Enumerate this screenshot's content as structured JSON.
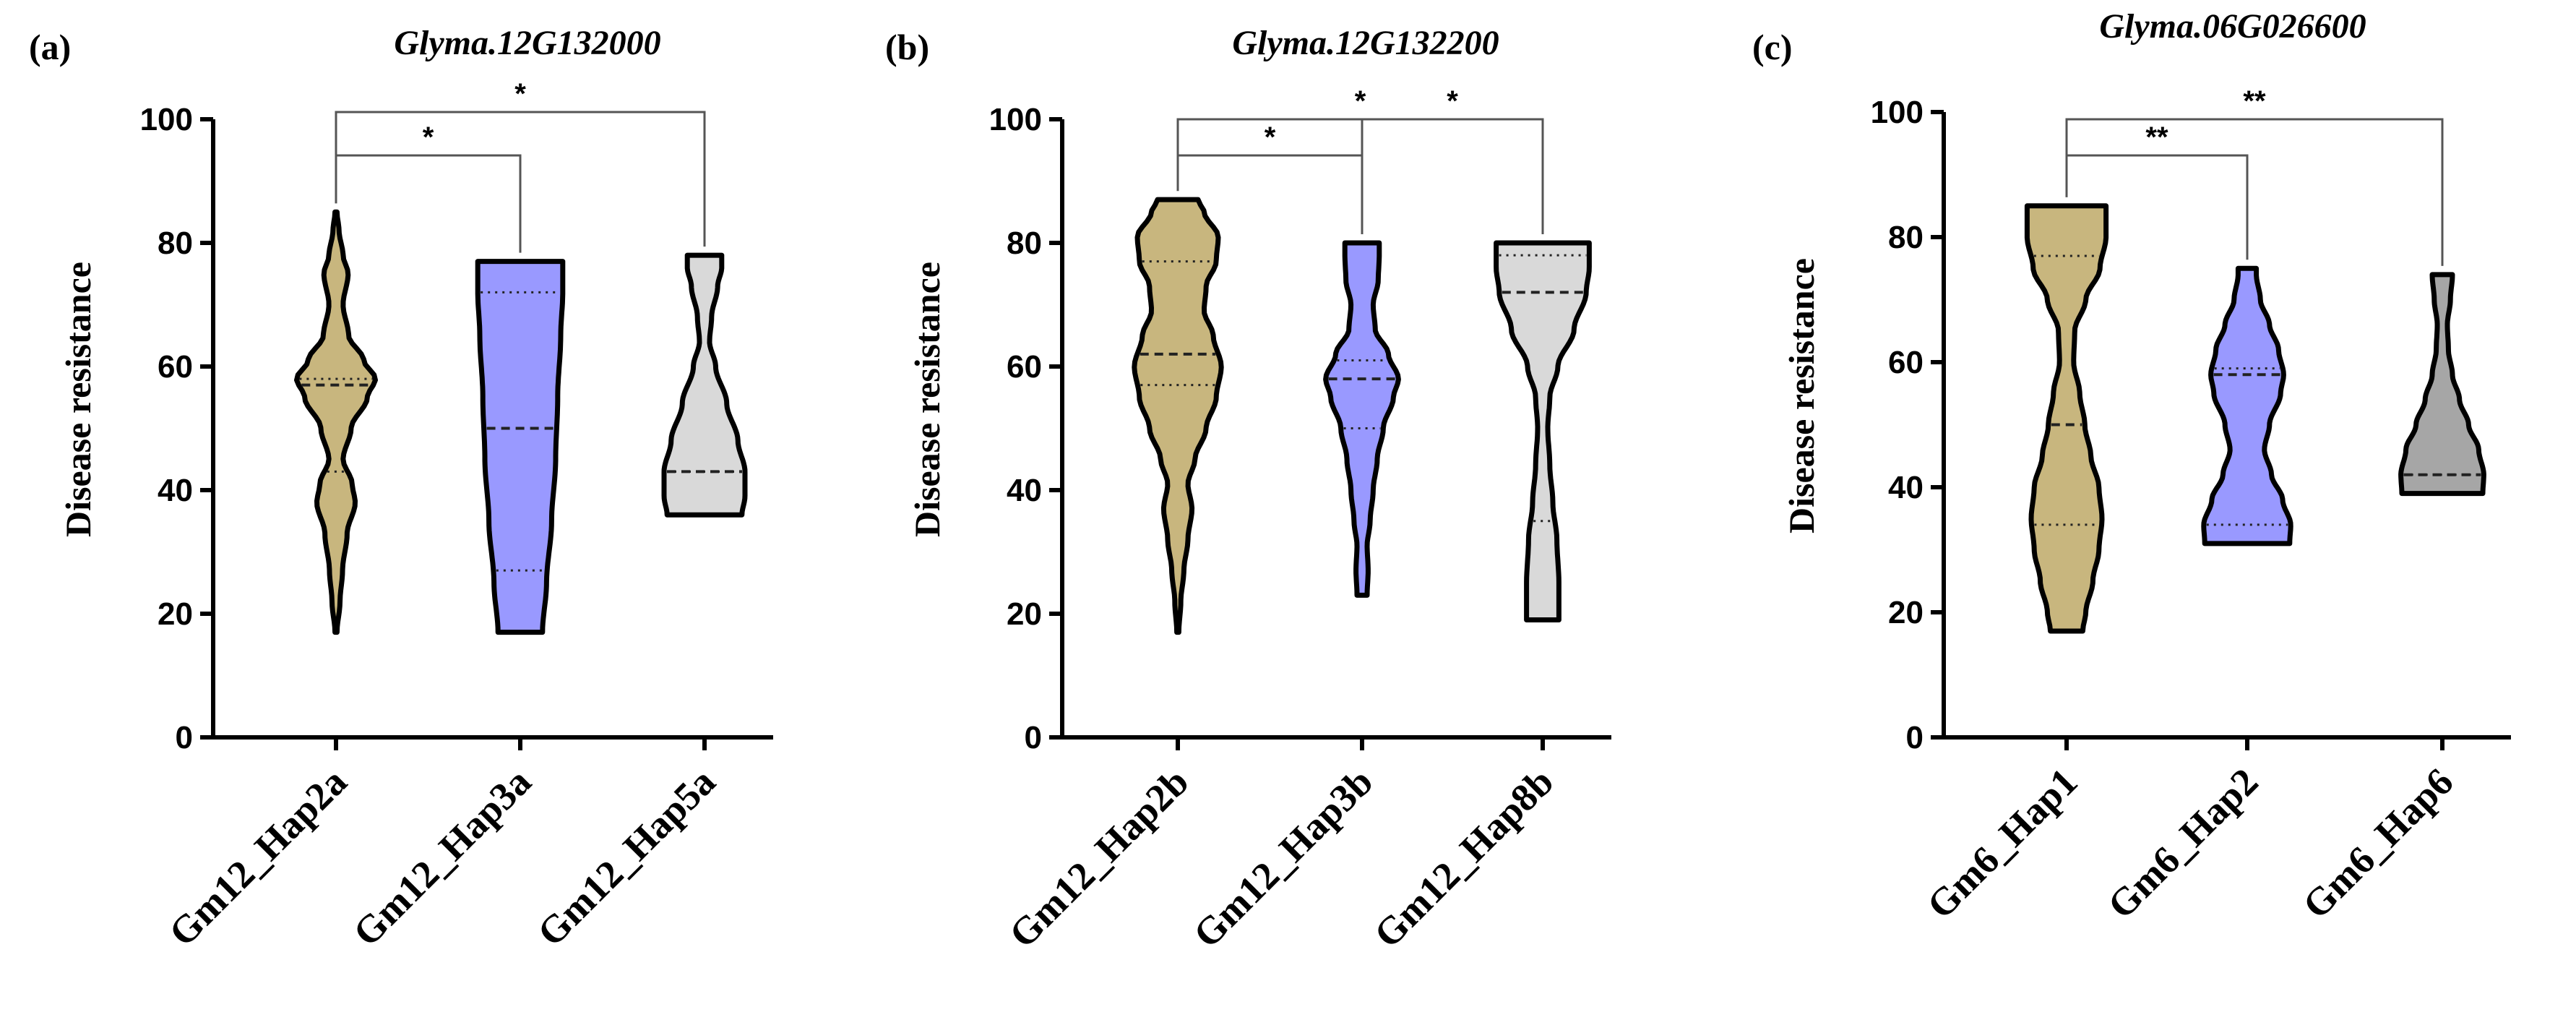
{
  "chart_data": [
    {
      "type": "violin",
      "panel": "(a)",
      "title": "Glyma.12G132000",
      "ylabel": "Disease resistance",
      "ylim": [
        0,
        100
      ],
      "yticks": [
        0,
        20,
        40,
        60,
        80,
        100
      ],
      "categories": [
        "Gm12_Hap2a",
        "Gm12_Hap3a",
        "Gm12_Hap5a"
      ],
      "violins": [
        {
          "name": "Gm12_Hap2a",
          "color": "#C8B67E",
          "min": 17,
          "max": 85,
          "q1": 43,
          "median": 57,
          "q3": 58,
          "profile": [
            [
              17,
              0.02
            ],
            [
              22,
              0.08
            ],
            [
              27,
              0.13
            ],
            [
              33,
              0.22
            ],
            [
              38,
              0.38
            ],
            [
              41,
              0.32
            ],
            [
              45,
              0.14
            ],
            [
              50,
              0.3
            ],
            [
              55,
              0.62
            ],
            [
              58,
              0.78
            ],
            [
              61,
              0.55
            ],
            [
              65,
              0.25
            ],
            [
              70,
              0.14
            ],
            [
              75,
              0.24
            ],
            [
              78,
              0.14
            ],
            [
              82,
              0.06
            ],
            [
              85,
              0.02
            ]
          ]
        },
        {
          "name": "Gm12_Hap3a",
          "color": "#9999FF",
          "min": 17,
          "max": 77,
          "q1": 27,
          "median": 50,
          "q3": 72,
          "profile": [
            [
              17,
              0.44
            ],
            [
              25,
              0.52
            ],
            [
              35,
              0.62
            ],
            [
              45,
              0.7
            ],
            [
              55,
              0.74
            ],
            [
              65,
              0.8
            ],
            [
              72,
              0.84
            ],
            [
              77,
              0.84
            ]
          ]
        },
        {
          "name": "Gm12_Hap5a",
          "color": "#D9D9D9",
          "min": 36,
          "max": 78,
          "q1": 43,
          "median": 43,
          "q3": 43,
          "profile": [
            [
              36,
              0.74
            ],
            [
              39,
              0.8
            ],
            [
              43,
              0.8
            ],
            [
              48,
              0.66
            ],
            [
              54,
              0.44
            ],
            [
              60,
              0.22
            ],
            [
              64,
              0.1
            ],
            [
              68,
              0.14
            ],
            [
              73,
              0.26
            ],
            [
              76,
              0.34
            ],
            [
              78,
              0.34
            ]
          ]
        }
      ],
      "significance": [
        {
          "from": 0,
          "to": 1,
          "label": "*"
        },
        {
          "from": 0,
          "to": 2,
          "label": "*"
        }
      ]
    },
    {
      "type": "violin",
      "panel": "(b)",
      "title": "Glyma.12G132200",
      "ylabel": "Disease resistance",
      "ylim": [
        0,
        100
      ],
      "yticks": [
        0,
        20,
        40,
        60,
        80,
        100
      ],
      "categories": [
        "Gm12_Hap2b",
        "Gm12_Hap3b",
        "Gm12_Hap8b"
      ],
      "violins": [
        {
          "name": "Gm12_Hap2b",
          "color": "#C8B67E",
          "min": 17,
          "max": 87,
          "q1": 57,
          "median": 62,
          "q3": 77,
          "profile": [
            [
              17,
              0.02
            ],
            [
              22,
              0.06
            ],
            [
              27,
              0.12
            ],
            [
              32,
              0.2
            ],
            [
              37,
              0.28
            ],
            [
              41,
              0.2
            ],
            [
              45,
              0.34
            ],
            [
              50,
              0.56
            ],
            [
              55,
              0.76
            ],
            [
              60,
              0.86
            ],
            [
              65,
              0.7
            ],
            [
              69,
              0.52
            ],
            [
              73,
              0.56
            ],
            [
              77,
              0.76
            ],
            [
              81,
              0.8
            ],
            [
              85,
              0.52
            ],
            [
              87,
              0.4
            ]
          ]
        },
        {
          "name": "Gm12_Hap3b",
          "color": "#9999FF",
          "min": 23,
          "max": 80,
          "q1": 50,
          "median": 58,
          "q3": 61,
          "profile": [
            [
              23,
              0.1
            ],
            [
              27,
              0.12
            ],
            [
              31,
              0.1
            ],
            [
              35,
              0.16
            ],
            [
              40,
              0.22
            ],
            [
              45,
              0.3
            ],
            [
              50,
              0.42
            ],
            [
              55,
              0.62
            ],
            [
              58,
              0.72
            ],
            [
              62,
              0.52
            ],
            [
              66,
              0.26
            ],
            [
              70,
              0.22
            ],
            [
              74,
              0.32
            ],
            [
              78,
              0.34
            ],
            [
              80,
              0.34
            ]
          ]
        },
        {
          "name": "Gm12_Hap8b",
          "color": "#D9D9D9",
          "min": 19,
          "max": 80,
          "q1": 35,
          "median": 72,
          "q3": 78,
          "profile": [
            [
              19,
              0.32
            ],
            [
              25,
              0.32
            ],
            [
              32,
              0.28
            ],
            [
              38,
              0.2
            ],
            [
              44,
              0.14
            ],
            [
              50,
              0.1
            ],
            [
              55,
              0.14
            ],
            [
              60,
              0.3
            ],
            [
              66,
              0.62
            ],
            [
              72,
              0.86
            ],
            [
              76,
              0.92
            ],
            [
              80,
              0.92
            ]
          ]
        }
      ],
      "significance": [
        {
          "from": 0,
          "to": 1,
          "label": "*"
        },
        {
          "from": 1,
          "to": 2,
          "label": "*"
        },
        {
          "from": 0,
          "to": 2,
          "label": "*"
        }
      ]
    },
    {
      "type": "violin",
      "panel": "(c)",
      "title": "Glyma.06G026600",
      "ylabel": "Disease resistance",
      "ylim": [
        0,
        100
      ],
      "yticks": [
        0,
        20,
        40,
        60,
        80,
        100
      ],
      "categories": [
        "Gm6_Hap1",
        "Gm6_Hap2",
        "Gm6_Hap6"
      ],
      "violins": [
        {
          "name": "Gm6_Hap1",
          "color": "#C8B67E",
          "min": 17,
          "max": 85,
          "q1": 34,
          "median": 50,
          "q3": 77,
          "profile": [
            [
              17,
              0.32
            ],
            [
              20,
              0.38
            ],
            [
              25,
              0.52
            ],
            [
              30,
              0.64
            ],
            [
              35,
              0.7
            ],
            [
              40,
              0.64
            ],
            [
              45,
              0.48
            ],
            [
              50,
              0.36
            ],
            [
              55,
              0.26
            ],
            [
              60,
              0.14
            ],
            [
              65,
              0.16
            ],
            [
              70,
              0.38
            ],
            [
              75,
              0.66
            ],
            [
              80,
              0.78
            ],
            [
              85,
              0.78
            ]
          ]
        },
        {
          "name": "Gm6_Hap2",
          "color": "#9999FF",
          "min": 31,
          "max": 75,
          "q1": 34,
          "median": 58,
          "q3": 59,
          "profile": [
            [
              31,
              0.84
            ],
            [
              34,
              0.86
            ],
            [
              38,
              0.7
            ],
            [
              42,
              0.48
            ],
            [
              46,
              0.34
            ],
            [
              50,
              0.44
            ],
            [
              55,
              0.66
            ],
            [
              58,
              0.72
            ],
            [
              62,
              0.62
            ],
            [
              66,
              0.44
            ],
            [
              70,
              0.26
            ],
            [
              74,
              0.18
            ],
            [
              75,
              0.18
            ]
          ]
        },
        {
          "name": "Gm6_Hap6",
          "color": "#A6A6A6",
          "min": 39,
          "max": 74,
          "q1": 42,
          "median": 42,
          "q3": 42,
          "profile": [
            [
              39,
              0.8
            ],
            [
              42,
              0.82
            ],
            [
              46,
              0.72
            ],
            [
              50,
              0.52
            ],
            [
              54,
              0.34
            ],
            [
              58,
              0.2
            ],
            [
              62,
              0.12
            ],
            [
              66,
              0.1
            ],
            [
              70,
              0.16
            ],
            [
              74,
              0.2
            ]
          ]
        }
      ],
      "significance": [
        {
          "from": 0,
          "to": 1,
          "label": "**"
        },
        {
          "from": 0,
          "to": 2,
          "label": "**"
        }
      ]
    }
  ]
}
